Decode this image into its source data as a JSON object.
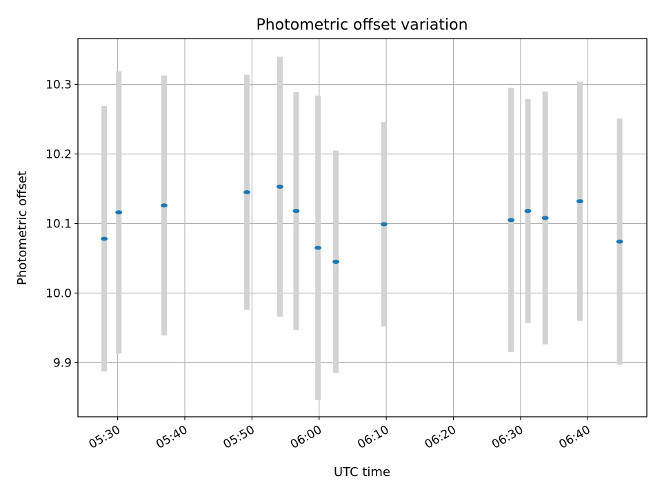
{
  "chart_data": {
    "type": "scatter",
    "title": "Photometric offset variation",
    "xlabel": "UTC time",
    "ylabel": "Photometric offset",
    "x_ticks": [
      "05:30",
      "05:40",
      "05:50",
      "06:00",
      "06:10",
      "06:20",
      "06:30",
      "06:40"
    ],
    "y_ticks": [
      9.9,
      10.0,
      10.1,
      10.2,
      10.3
    ],
    "xlim": [
      "05:24:05",
      "06:48:48"
    ],
    "ylim": [
      9.822,
      10.366
    ],
    "grid": true,
    "colors": {
      "point": "#1f77b4",
      "errorbar": "#d3d3d3",
      "grid": "#b0b0b0"
    },
    "points": [
      {
        "x": "05:28:00",
        "y": 10.078,
        "yerr": 0.191
      },
      {
        "x": "05:30:10",
        "y": 10.116,
        "yerr": 0.203
      },
      {
        "x": "05:36:55",
        "y": 10.126,
        "yerr": 0.187
      },
      {
        "x": "05:49:15",
        "y": 10.145,
        "yerr": 0.169
      },
      {
        "x": "05:54:10",
        "y": 10.153,
        "yerr": 0.187
      },
      {
        "x": "05:56:35",
        "y": 10.118,
        "yerr": 0.171
      },
      {
        "x": "05:59:50",
        "y": 10.065,
        "yerr": 0.219
      },
      {
        "x": "06:02:30",
        "y": 10.045,
        "yerr": 0.16
      },
      {
        "x": "06:09:40",
        "y": 10.099,
        "yerr": 0.147
      },
      {
        "x": "06:28:35",
        "y": 10.105,
        "yerr": 0.19
      },
      {
        "x": "06:31:05",
        "y": 10.118,
        "yerr": 0.161
      },
      {
        "x": "06:33:40",
        "y": 10.108,
        "yerr": 0.182
      },
      {
        "x": "06:38:50",
        "y": 10.132,
        "yerr": 0.172
      },
      {
        "x": "06:44:45",
        "y": 10.074,
        "yerr": 0.177
      }
    ]
  }
}
